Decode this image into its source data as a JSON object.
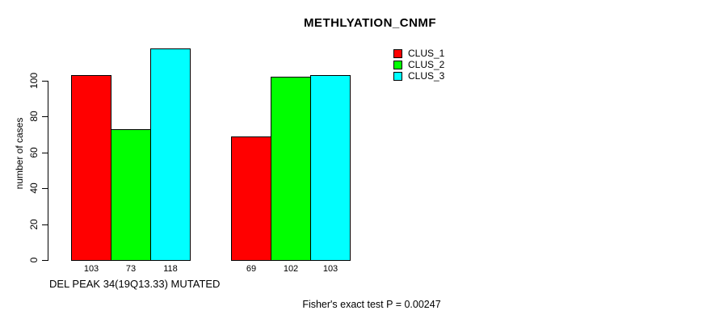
{
  "chart_data": {
    "type": "bar",
    "title": "METHLYATION_CNMF",
    "ylabel": "number of cases",
    "xlabel": "DEL PEAK 34(19Q13.33) MUTATED",
    "footnote": "Fisher's exact test P = 0.00247",
    "series": [
      {
        "name": "CLUS_1",
        "color": "#ff0000",
        "values": [
          103,
          69
        ]
      },
      {
        "name": "CLUS_2",
        "color": "#00ff00",
        "values": [
          73,
          102
        ]
      },
      {
        "name": "CLUS_3",
        "color": "#00ffff",
        "values": [
          118,
          103
        ]
      }
    ],
    "bar_value_labels": [
      [
        103,
        73,
        118
      ],
      [
        69,
        102,
        103
      ]
    ],
    "yticks": [
      0,
      20,
      40,
      60,
      80,
      100
    ],
    "ylim": [
      0,
      118
    ],
    "grid": false,
    "legend_position": "top-right",
    "axis_color": "#000000",
    "background_color": "#ffffff"
  }
}
